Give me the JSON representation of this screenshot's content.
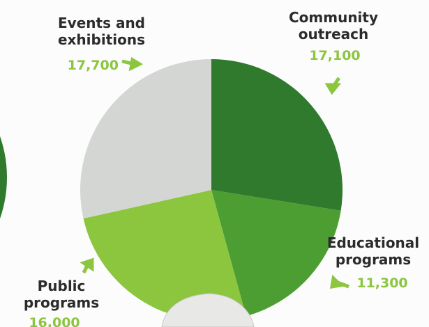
{
  "chart_data": {
    "type": "pie",
    "categories": [
      "Community outreach",
      "Educational programs",
      "Public programs",
      "Events and exhibitions"
    ],
    "values": [
      17100,
      11300,
      16000,
      17700
    ],
    "value_labels": [
      "17,100",
      "11,300",
      "16,000",
      "17,700"
    ],
    "colors": [
      "#2f7a2c",
      "#4c9e33",
      "#8cc63f",
      "#d4d6d4"
    ],
    "start_angle": 0,
    "direction": "clockwise"
  }
}
